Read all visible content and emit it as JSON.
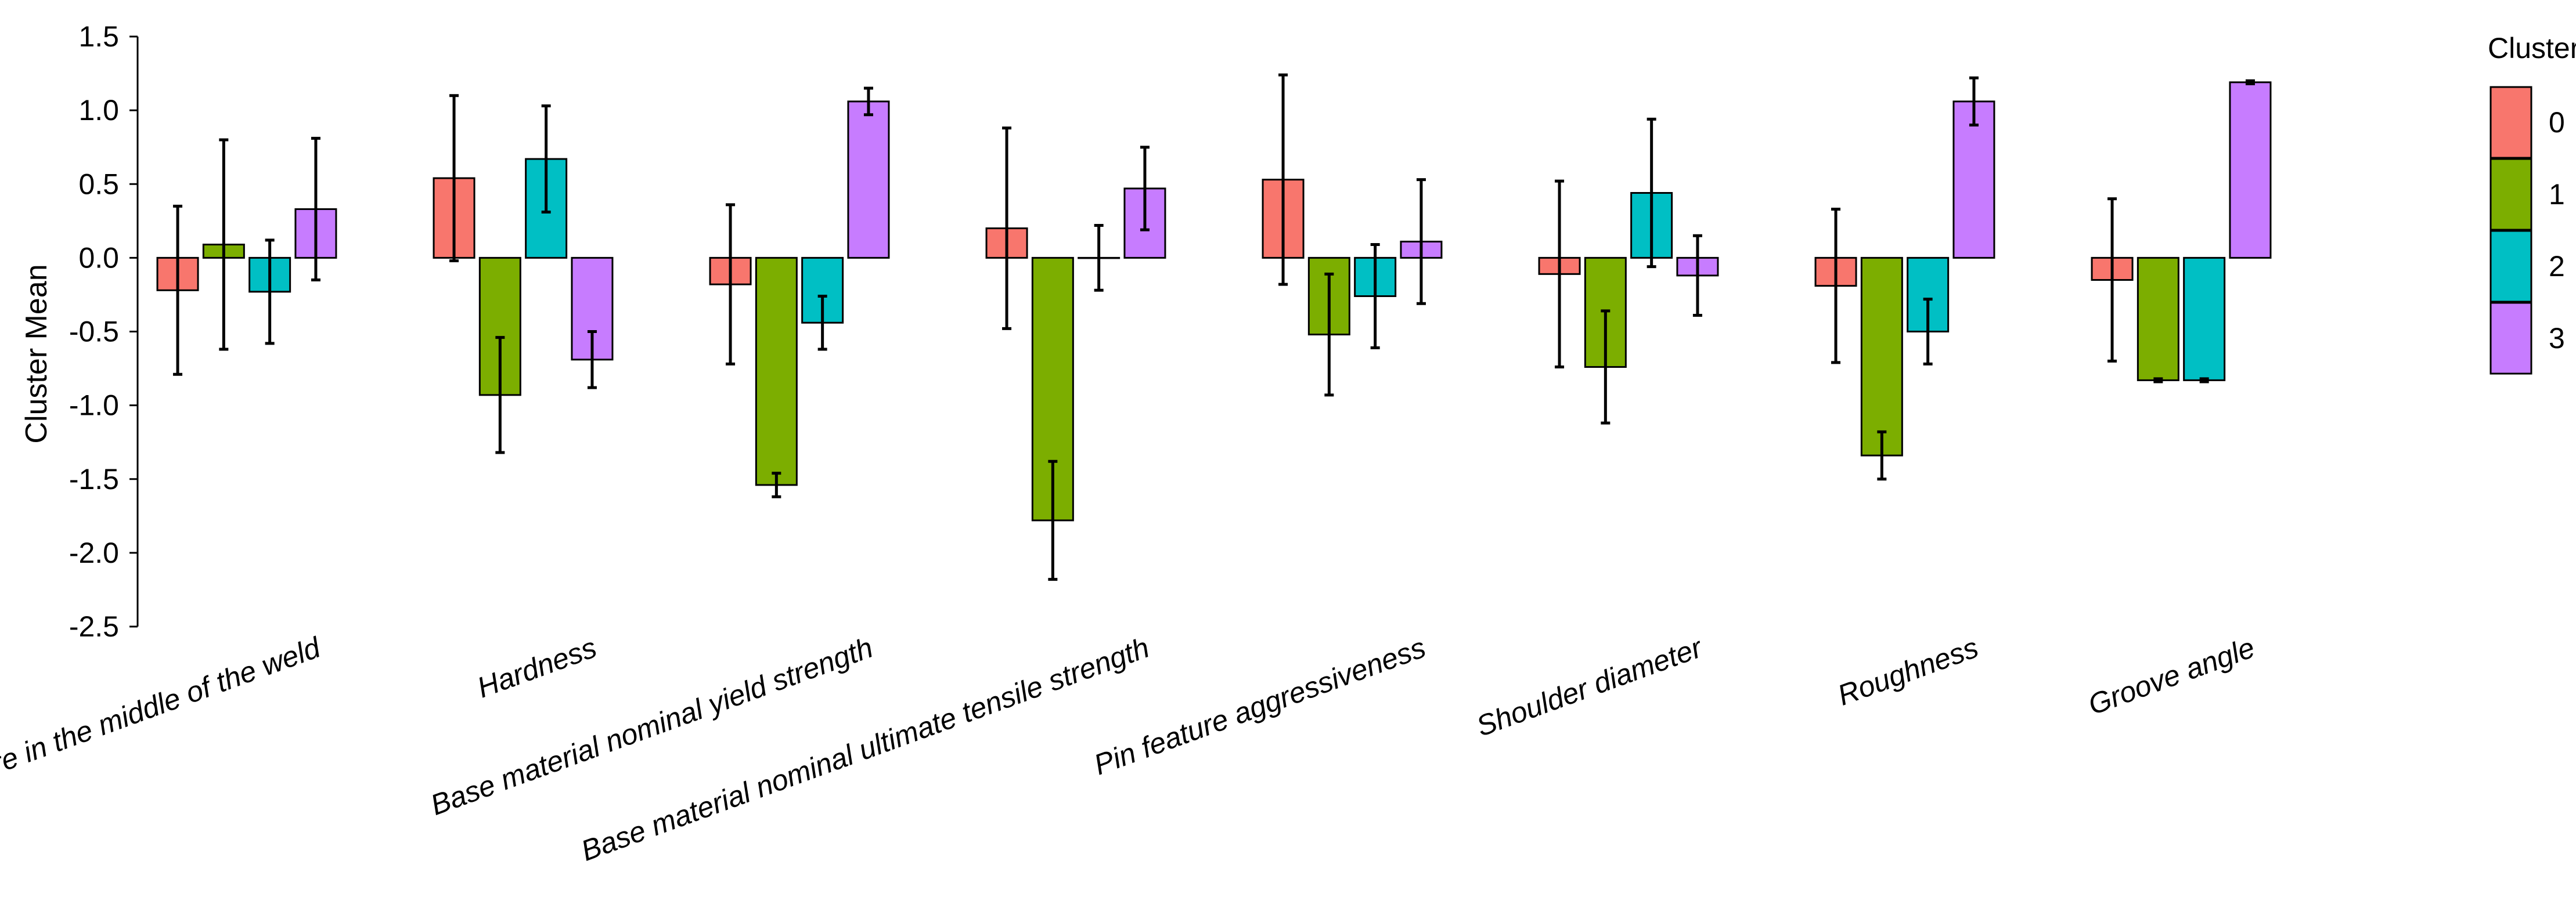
{
  "chart_data": {
    "type": "bar",
    "ylabel": "Cluster Mean",
    "xlabel": "",
    "ylim": [
      -2.5,
      1.5
    ],
    "yticks": [
      "-2.5",
      "-2.0",
      "-1.5",
      "-1.0",
      "-0.5",
      "0.0",
      "0.5",
      "1.0",
      "1.5"
    ],
    "grid": false,
    "legend_position": "right",
    "legend_title": "Cluster",
    "categories": [
      "Temperature in the middle of the weld",
      "Hardness",
      "Base material nominal yield strength",
      "Base material nominal ultimate tensile strength",
      "Pin feature aggressiveness",
      "Shoulder diameter",
      "Roughness",
      "Groove angle"
    ],
    "series": [
      {
        "name": "0",
        "color": "#F8766D",
        "values": [
          -0.22,
          0.54,
          -0.18,
          0.2,
          0.53,
          -0.11,
          -0.19,
          -0.15
        ],
        "errors": [
          0.57,
          0.56,
          0.54,
          0.68,
          0.71,
          0.63,
          0.52,
          0.55
        ]
      },
      {
        "name": "1",
        "color": "#7CAE00",
        "values": [
          0.09,
          -0.93,
          -1.54,
          -1.78,
          -0.52,
          -0.74,
          -1.34,
          -0.83
        ],
        "errors": [
          0.71,
          0.39,
          0.08,
          0.4,
          0.41,
          0.38,
          0.16,
          0.01
        ]
      },
      {
        "name": "2",
        "color": "#00BFC4",
        "values": [
          -0.23,
          0.67,
          -0.44,
          0.0,
          -0.26,
          0.44,
          -0.5,
          -0.83
        ],
        "errors": [
          0.35,
          0.36,
          0.18,
          0.22,
          0.35,
          0.5,
          0.22,
          0.01
        ]
      },
      {
        "name": "3",
        "color": "#C77CFF",
        "values": [
          0.33,
          -0.69,
          1.06,
          0.47,
          0.11,
          -0.12,
          1.06,
          1.19
        ],
        "errors": [
          0.48,
          0.19,
          0.09,
          0.28,
          0.42,
          0.27,
          0.16,
          0.01
        ]
      }
    ]
  }
}
